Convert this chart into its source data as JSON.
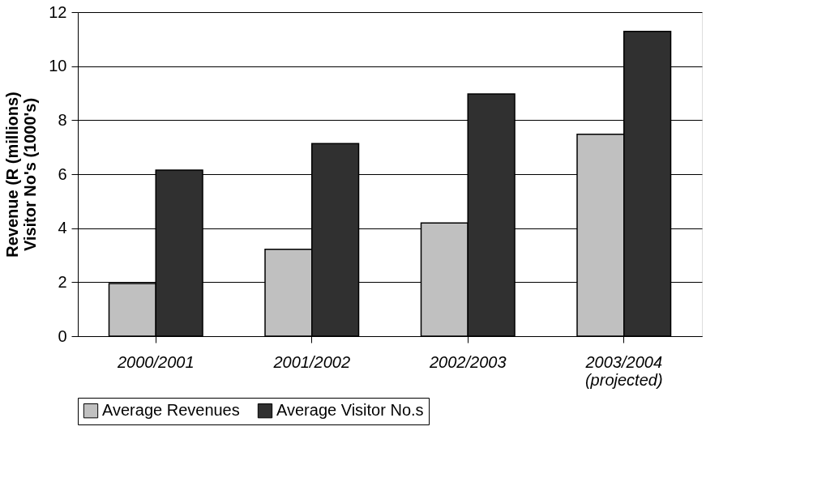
{
  "chart_data": {
    "type": "bar",
    "ylabel": "Revenue (R (millions)\nVisitor No's (1000's)",
    "categories": [
      "2000/2001",
      "2001/2002",
      "2002/2003",
      "2003/2004\n(projected)"
    ],
    "series": [
      {
        "name": "Average Revenues",
        "color": "#c0c0c0",
        "values": [
          1.95,
          3.22,
          4.19,
          7.48
        ]
      },
      {
        "name": "Average Visitor No.s",
        "color": "#303030",
        "values": [
          6.15,
          7.13,
          8.97,
          11.29
        ]
      }
    ],
    "ylim": [
      0,
      12
    ],
    "yticks": [
      0,
      2,
      4,
      6,
      8,
      10,
      12
    ],
    "grid": "y",
    "legend": "bottom"
  }
}
